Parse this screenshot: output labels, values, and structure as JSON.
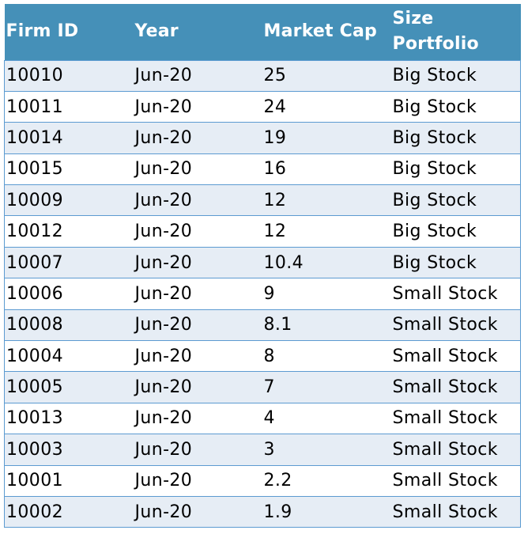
{
  "table": {
    "headers": {
      "firm_id": "Firm ID",
      "year": "Year",
      "market_cap": "Market Cap",
      "size_portfolio_line1": "Size",
      "size_portfolio_line2": "Portfolio"
    },
    "colors": {
      "header_bg": "#4590b8",
      "header_text": "#ffffff",
      "band_row_bg": "#e6edf5",
      "border": "#5c9bd1"
    },
    "rows": [
      {
        "firm_id": "10010",
        "year": "Jun-20",
        "market_cap": "25",
        "size_portfolio": "Big Stock"
      },
      {
        "firm_id": "10011",
        "year": "Jun-20",
        "market_cap": "24",
        "size_portfolio": "Big Stock"
      },
      {
        "firm_id": "10014",
        "year": "Jun-20",
        "market_cap": "19",
        "size_portfolio": "Big Stock"
      },
      {
        "firm_id": "10015",
        "year": "Jun-20",
        "market_cap": "16",
        "size_portfolio": "Big Stock"
      },
      {
        "firm_id": "10009",
        "year": "Jun-20",
        "market_cap": "12",
        "size_portfolio": "Big Stock"
      },
      {
        "firm_id": "10012",
        "year": "Jun-20",
        "market_cap": "12",
        "size_portfolio": "Big Stock"
      },
      {
        "firm_id": "10007",
        "year": "Jun-20",
        "market_cap": "10.4",
        "size_portfolio": "Big Stock"
      },
      {
        "firm_id": "10006",
        "year": "Jun-20",
        "market_cap": "9",
        "size_portfolio": "Small Stock"
      },
      {
        "firm_id": "10008",
        "year": "Jun-20",
        "market_cap": "8.1",
        "size_portfolio": "Small Stock"
      },
      {
        "firm_id": "10004",
        "year": "Jun-20",
        "market_cap": "8",
        "size_portfolio": "Small Stock"
      },
      {
        "firm_id": "10005",
        "year": "Jun-20",
        "market_cap": "7",
        "size_portfolio": "Small Stock"
      },
      {
        "firm_id": "10013",
        "year": "Jun-20",
        "market_cap": "4",
        "size_portfolio": "Small Stock"
      },
      {
        "firm_id": "10003",
        "year": "Jun-20",
        "market_cap": "3",
        "size_portfolio": "Small Stock"
      },
      {
        "firm_id": "10001",
        "year": "Jun-20",
        "market_cap": "2.2",
        "size_portfolio": "Small Stock"
      },
      {
        "firm_id": "10002",
        "year": "Jun-20",
        "market_cap": "1.9",
        "size_portfolio": "Small Stock"
      }
    ]
  }
}
